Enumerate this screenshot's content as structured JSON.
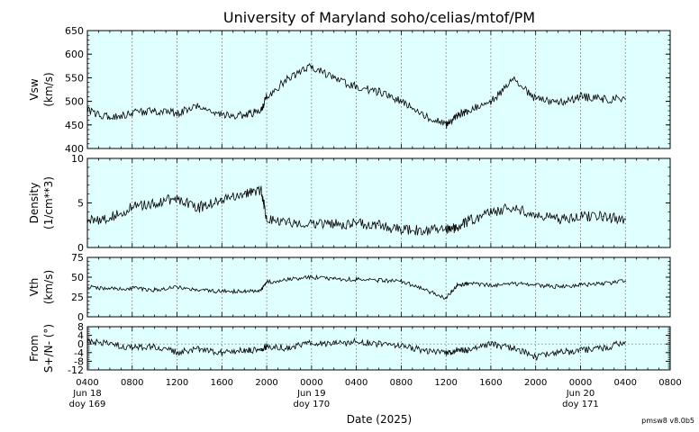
{
  "title": "University of Maryland  soho/celias/mtof/PM",
  "xlabel": "Date (2025)",
  "version": "pmsw8 v8.0b5",
  "colors": {
    "panel_bg": "#e0ffff",
    "line": "#000000",
    "grid": "#555555"
  },
  "x_ticks": [
    {
      "h": 0,
      "lines": [
        "0400",
        "Jun 18",
        "doy 169"
      ]
    },
    {
      "h": 4,
      "lines": [
        "0800"
      ]
    },
    {
      "h": 8,
      "lines": [
        "1200"
      ]
    },
    {
      "h": 12,
      "lines": [
        "1600"
      ]
    },
    {
      "h": 16,
      "lines": [
        "2000"
      ]
    },
    {
      "h": 20,
      "lines": [
        "0000",
        "Jun 19",
        "doy 170"
      ]
    },
    {
      "h": 24,
      "lines": [
        "0400"
      ]
    },
    {
      "h": 28,
      "lines": [
        "0800"
      ]
    },
    {
      "h": 32,
      "lines": [
        "1200"
      ]
    },
    {
      "h": 36,
      "lines": [
        "1600"
      ]
    },
    {
      "h": 40,
      "lines": [
        "2000"
      ]
    },
    {
      "h": 44,
      "lines": [
        "0000",
        "Jun 20",
        "doy 171"
      ]
    },
    {
      "h": 48,
      "lines": [
        "0400"
      ]
    },
    {
      "h": 52,
      "lines": [
        "0800"
      ]
    }
  ],
  "chart_data": [
    {
      "type": "line",
      "ylabel": [
        "Vsw",
        "(km/s)"
      ],
      "ylim": [
        400,
        650
      ],
      "yticks": [
        400,
        450,
        500,
        550,
        600,
        650
      ],
      "grid": "vertical dotted",
      "x": [
        0,
        2,
        4,
        6,
        8,
        10,
        12,
        14,
        15.5,
        16,
        18,
        20,
        22,
        24,
        26,
        28,
        30,
        32,
        33,
        34,
        36,
        38,
        40,
        42,
        44,
        46,
        48
      ],
      "values": [
        480,
        465,
        475,
        480,
        475,
        490,
        470,
        470,
        480,
        510,
        550,
        575,
        550,
        530,
        520,
        500,
        470,
        450,
        470,
        480,
        500,
        545,
        505,
        495,
        510,
        505,
        505
      ]
    },
    {
      "type": "line",
      "ylabel": [
        "Density",
        "(1/cm**3)"
      ],
      "ylim": [
        0,
        10
      ],
      "yticks": [
        0,
        5,
        10
      ],
      "grid": "vertical dotted",
      "x": [
        0,
        2,
        4,
        6,
        8,
        10,
        12,
        14,
        15.5,
        16,
        18,
        20,
        22,
        24,
        26,
        28,
        30,
        32,
        33,
        34,
        36,
        38,
        40,
        42,
        44,
        46,
        48
      ],
      "values": [
        3.0,
        3.3,
        4.5,
        5.0,
        5.5,
        4.5,
        5.5,
        6.0,
        6.5,
        3.3,
        2.8,
        2.8,
        2.6,
        2.7,
        2.5,
        2.0,
        1.9,
        2.0,
        2.2,
        3.0,
        4.0,
        4.5,
        3.5,
        3.2,
        3.5,
        3.5,
        3.2
      ]
    },
    {
      "type": "line",
      "ylabel": [
        "Vth",
        "(km/s)"
      ],
      "ylim": [
        0,
        75
      ],
      "yticks": [
        0,
        25,
        50,
        75
      ],
      "grid": "vertical dotted",
      "x": [
        0,
        2,
        4,
        6,
        8,
        10,
        12,
        14,
        15.5,
        16,
        18,
        20,
        22,
        24,
        26,
        28,
        30,
        32,
        33,
        34,
        36,
        38,
        40,
        42,
        44,
        46,
        48
      ],
      "values": [
        38,
        35,
        36,
        34,
        38,
        33,
        32,
        32,
        33,
        44,
        47,
        50,
        48,
        47,
        46,
        45,
        35,
        23,
        40,
        42,
        40,
        42,
        40,
        38,
        40,
        42,
        45
      ]
    },
    {
      "type": "line",
      "ylabel": [
        "From",
        "S+/N- (°)"
      ],
      "ylim": [
        -12,
        8
      ],
      "yticks": [
        -12,
        -8,
        -4,
        0,
        4,
        8
      ],
      "zero_line": true,
      "grid": "vertical dotted",
      "x": [
        0,
        2,
        4,
        6,
        8,
        10,
        12,
        14,
        15.5,
        16,
        18,
        20,
        22,
        24,
        26,
        28,
        30,
        32,
        33,
        34,
        36,
        38,
        40,
        42,
        44,
        46,
        48
      ],
      "values": [
        1,
        0,
        -2,
        -1,
        -4,
        -2,
        -4,
        -3,
        -3,
        -1,
        -2,
        1,
        0,
        1,
        0,
        -1,
        -3,
        -4,
        -3,
        -3,
        0,
        -2,
        -6,
        -4,
        -3,
        -2,
        1
      ]
    }
  ]
}
